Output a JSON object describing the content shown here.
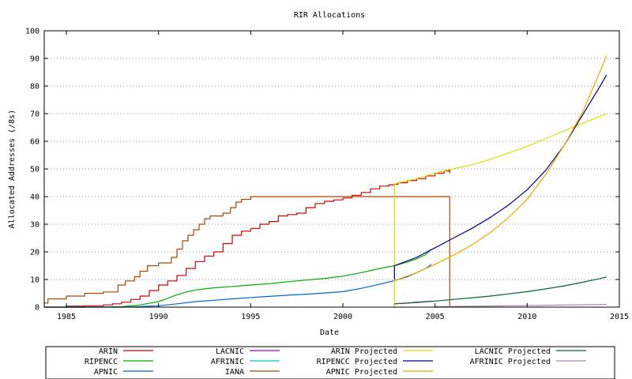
{
  "chart_data": {
    "type": "line",
    "title": "RIR Allocations",
    "xlabel": "Date",
    "ylabel": "Allocated Addresses (/8s)",
    "xlim": [
      1983.8,
      2015.0
    ],
    "ylim": [
      0,
      100
    ],
    "xticks": [
      1985,
      1990,
      1995,
      2000,
      2005,
      2010,
      2015
    ],
    "yticks": [
      0,
      10,
      20,
      30,
      40,
      50,
      60,
      70,
      80,
      90,
      100
    ],
    "grid": "horizontal dotted",
    "legend_position": "below plot, 4 columns",
    "series": [
      {
        "name": "ARIN",
        "color": "#cc0000",
        "step": true,
        "points": [
          [
            1983.8,
            0
          ],
          [
            1985.0,
            0.3
          ],
          [
            1986.0,
            0.5
          ],
          [
            1987.0,
            0.8
          ],
          [
            1987.5,
            1.2
          ],
          [
            1988.0,
            1.8
          ],
          [
            1988.5,
            2.8
          ],
          [
            1989.0,
            4.0
          ],
          [
            1989.5,
            6.0
          ],
          [
            1990.0,
            8.0
          ],
          [
            1990.5,
            9.5
          ],
          [
            1991.0,
            11.5
          ],
          [
            1991.5,
            14.0
          ],
          [
            1992.0,
            16.5
          ],
          [
            1992.5,
            18.5
          ],
          [
            1993.0,
            20.0
          ],
          [
            1993.5,
            23.0
          ],
          [
            1994.0,
            26.0
          ],
          [
            1994.5,
            27.5
          ],
          [
            1995.0,
            28.5
          ],
          [
            1995.5,
            30.0
          ],
          [
            1996.0,
            31.0
          ],
          [
            1996.5,
            33.0
          ],
          [
            1997.0,
            33.5
          ],
          [
            1997.5,
            34.0
          ],
          [
            1998.0,
            36.0
          ],
          [
            1998.5,
            37.5
          ],
          [
            1999.0,
            38.3
          ],
          [
            1999.5,
            38.8
          ],
          [
            2000.0,
            39.5
          ],
          [
            2000.5,
            40.5
          ],
          [
            2001.0,
            41.5
          ],
          [
            2001.5,
            42.8
          ],
          [
            2002.0,
            43.8
          ],
          [
            2002.5,
            44.3
          ],
          [
            2002.8,
            44.5
          ],
          [
            2003.0,
            45.0
          ],
          [
            2003.5,
            45.8
          ],
          [
            2004.0,
            46.5
          ],
          [
            2004.5,
            47.5
          ],
          [
            2005.0,
            48.5
          ],
          [
            2005.5,
            49.3
          ],
          [
            2005.8,
            49.8
          ],
          [
            2005.8,
            48.5
          ]
        ]
      },
      {
        "name": "RIPENCC",
        "color": "#00aa00",
        "step": false,
        "points": [
          [
            1983.8,
            0
          ],
          [
            1987.0,
            0
          ],
          [
            1988.0,
            0.2
          ],
          [
            1989.0,
            0.8
          ],
          [
            1990.0,
            2.0
          ],
          [
            1990.5,
            3.2
          ],
          [
            1991.0,
            4.5
          ],
          [
            1991.5,
            5.5
          ],
          [
            1992.0,
            6.2
          ],
          [
            1993.0,
            7.0
          ],
          [
            1994.0,
            7.5
          ],
          [
            1995.0,
            8.0
          ],
          [
            1996.0,
            8.5
          ],
          [
            1997.0,
            9.2
          ],
          [
            1998.0,
            9.8
          ],
          [
            1999.0,
            10.4
          ],
          [
            2000.0,
            11.2
          ],
          [
            2001.0,
            12.5
          ],
          [
            2002.0,
            14.0
          ],
          [
            2002.8,
            15.0
          ],
          [
            2003.5,
            16.3
          ],
          [
            2004.0,
            17.5
          ],
          [
            2004.5,
            19.0
          ],
          [
            2004.8,
            21.0
          ]
        ]
      },
      {
        "name": "APNIC",
        "color": "#0066cc",
        "step": false,
        "points": [
          [
            1983.8,
            0
          ],
          [
            1988.0,
            0
          ],
          [
            1989.0,
            0.2
          ],
          [
            1990.0,
            0.5
          ],
          [
            1991.0,
            1.2
          ],
          [
            1992.0,
            2.0
          ],
          [
            1993.0,
            2.5
          ],
          [
            1994.0,
            3.0
          ],
          [
            1995.0,
            3.5
          ],
          [
            1996.0,
            3.9
          ],
          [
            1997.0,
            4.3
          ],
          [
            1998.0,
            4.7
          ],
          [
            1999.0,
            5.1
          ],
          [
            2000.0,
            5.6
          ],
          [
            2001.0,
            6.8
          ],
          [
            2002.0,
            8.3
          ],
          [
            2002.8,
            9.6
          ],
          [
            2003.5,
            11.0
          ],
          [
            2004.0,
            12.5
          ],
          [
            2004.5,
            14.0
          ],
          [
            2004.8,
            15.5
          ]
        ]
      },
      {
        "name": "LACNIC",
        "color": "#9900cc",
        "step": false,
        "points": [
          [
            2002.8,
            0
          ],
          [
            2002.8,
            1.2
          ],
          [
            2003.5,
            1.5
          ],
          [
            2004.0,
            1.8
          ],
          [
            2004.5,
            2.0
          ],
          [
            2004.8,
            2.2
          ]
        ]
      },
      {
        "name": "AFRINIC",
        "color": "#00cccc",
        "step": false,
        "points": [
          [
            2005.0,
            0
          ],
          [
            2005.8,
            0.1
          ]
        ]
      },
      {
        "name": "IANA",
        "color": "#aa4400",
        "step": true,
        "points": [
          [
            1983.8,
            1.5
          ],
          [
            1984.0,
            3.0
          ],
          [
            1985.0,
            4.0
          ],
          [
            1986.0,
            5.0
          ],
          [
            1987.0,
            5.5
          ],
          [
            1987.8,
            8.0
          ],
          [
            1988.2,
            9.5
          ],
          [
            1988.7,
            11.0
          ],
          [
            1989.0,
            13.0
          ],
          [
            1989.4,
            15.0
          ],
          [
            1990.0,
            16.0
          ],
          [
            1990.7,
            18.0
          ],
          [
            1991.0,
            21.0
          ],
          [
            1991.3,
            24.0
          ],
          [
            1991.6,
            26.0
          ],
          [
            1991.9,
            28.0
          ],
          [
            1992.2,
            30.0
          ],
          [
            1992.5,
            32.0
          ],
          [
            1992.8,
            33.0
          ],
          [
            1993.5,
            34.0
          ],
          [
            1993.9,
            36.0
          ],
          [
            1994.2,
            38.0
          ],
          [
            1994.5,
            39.0
          ],
          [
            1995.0,
            40.0
          ],
          [
            2005.8,
            40.0
          ],
          [
            2005.8,
            0
          ]
        ]
      },
      {
        "name": "ARIN Projected",
        "color": "#dddd00",
        "step": false,
        "points": [
          [
            2002.8,
            0
          ],
          [
            2002.8,
            44.5
          ],
          [
            2003.0,
            45.0
          ],
          [
            2004.0,
            46.5
          ],
          [
            2005.0,
            48.5
          ],
          [
            2005.8,
            49.8
          ],
          [
            2007.0,
            51.5
          ],
          [
            2008.0,
            53.5
          ],
          [
            2009.0,
            55.8
          ],
          [
            2010.0,
            58.2
          ],
          [
            2011.0,
            61.0
          ],
          [
            2012.0,
            63.8
          ],
          [
            2013.0,
            66.5
          ],
          [
            2014.0,
            69.2
          ],
          [
            2014.3,
            70.0
          ]
        ]
      },
      {
        "name": "RIPENCC Projected",
        "color": "#000088",
        "step": false,
        "points": [
          [
            2002.8,
            10.0
          ],
          [
            2002.8,
            15.0
          ],
          [
            2004.0,
            18.0
          ],
          [
            2005.0,
            21.5
          ],
          [
            2006.0,
            25.0
          ],
          [
            2007.0,
            28.5
          ],
          [
            2008.0,
            32.5
          ],
          [
            2009.0,
            37.0
          ],
          [
            2010.0,
            42.5
          ],
          [
            2011.0,
            49.5
          ],
          [
            2012.0,
            58.5
          ],
          [
            2013.0,
            69.5
          ],
          [
            2014.0,
            80.5
          ],
          [
            2014.3,
            84.0
          ]
        ]
      },
      {
        "name": "APNIC Projected",
        "color": "#eeaa00",
        "step": false,
        "points": [
          [
            2002.8,
            9.6
          ],
          [
            2004.0,
            12.5
          ],
          [
            2005.0,
            15.5
          ],
          [
            2006.0,
            18.8
          ],
          [
            2007.0,
            22.5
          ],
          [
            2008.0,
            27.0
          ],
          [
            2009.0,
            32.5
          ],
          [
            2010.0,
            39.0
          ],
          [
            2011.0,
            48.0
          ],
          [
            2012.0,
            58.5
          ],
          [
            2013.0,
            70.5
          ],
          [
            2014.0,
            86.0
          ],
          [
            2014.3,
            91.0
          ]
        ]
      },
      {
        "name": "LACNIC Projected",
        "color": "#006633",
        "step": false,
        "points": [
          [
            2002.8,
            1.2
          ],
          [
            2004.0,
            1.7
          ],
          [
            2005.0,
            2.2
          ],
          [
            2006.0,
            2.8
          ],
          [
            2007.0,
            3.4
          ],
          [
            2008.0,
            4.0
          ],
          [
            2009.0,
            4.8
          ],
          [
            2010.0,
            5.6
          ],
          [
            2011.0,
            6.6
          ],
          [
            2012.0,
            7.7
          ],
          [
            2013.0,
            9.0
          ],
          [
            2014.0,
            10.4
          ],
          [
            2014.3,
            10.9
          ]
        ]
      },
      {
        "name": "AFRINIC Projected",
        "color": "#aa88aa",
        "step": false,
        "points": [
          [
            2005.0,
            0.2
          ],
          [
            2008.0,
            0.4
          ],
          [
            2011.0,
            0.7
          ],
          [
            2014.3,
            1.0
          ]
        ]
      }
    ]
  }
}
